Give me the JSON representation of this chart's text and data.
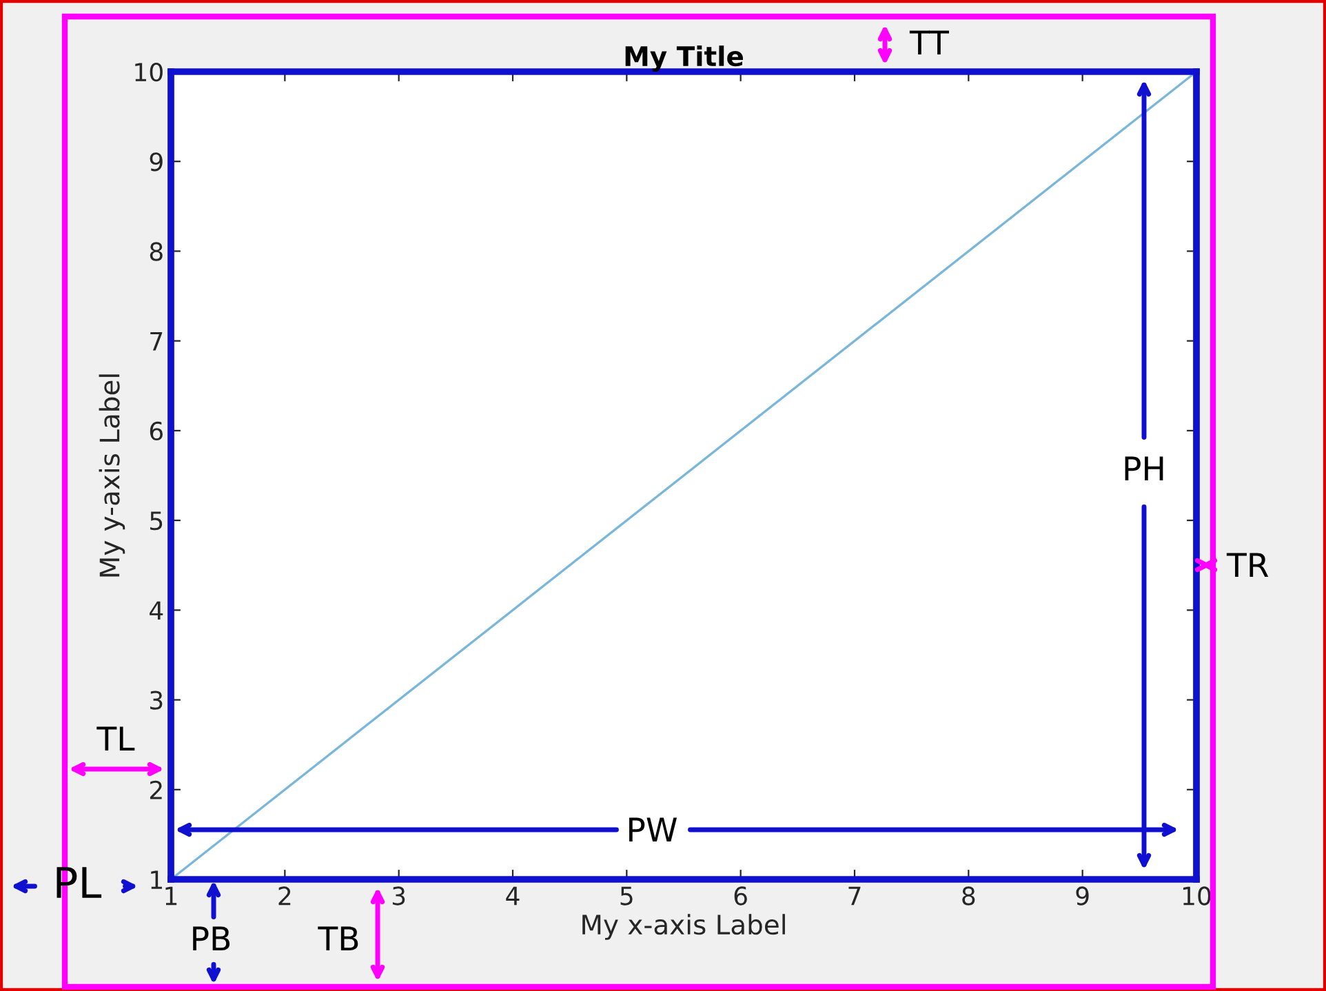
{
  "chart_data": {
    "type": "line",
    "title": "My Title",
    "xlabel": "My x-axis Label",
    "ylabel": "My y-axis Label",
    "x": [
      1,
      10
    ],
    "series": [
      {
        "color": "#7ab6da",
        "values": [
          1,
          10
        ]
      }
    ],
    "xlim": [
      1,
      10
    ],
    "ylim": [
      1,
      10
    ],
    "xticks": [
      1,
      2,
      3,
      4,
      5,
      6,
      7,
      8,
      9,
      10
    ],
    "yticks": [
      1,
      2,
      3,
      4,
      5,
      6,
      7,
      8,
      9,
      10
    ],
    "grid": false,
    "legend": false,
    "marker": "none",
    "line_style": "solid",
    "annotations": [
      "TT",
      "TR",
      "TL",
      "TB",
      "PH",
      "PW",
      "PL",
      "PB"
    ]
  }
}
